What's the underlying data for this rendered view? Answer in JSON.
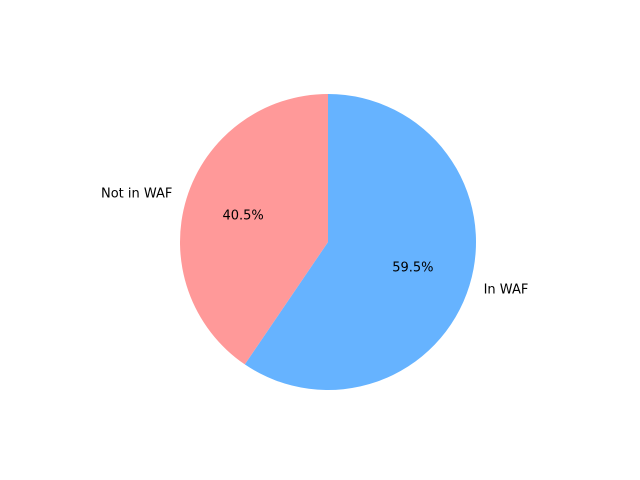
{
  "chart_data": {
    "type": "pie",
    "labels": [
      "In WAF",
      "Not in WAF"
    ],
    "values": [
      59.5,
      40.5
    ],
    "percent_labels": [
      "59.5%",
      "40.5%"
    ],
    "colors": [
      "#66b3ff",
      "#ff9999"
    ],
    "start_angle_deg": 90,
    "direction": "clockwise",
    "title": "",
    "legend": false
  }
}
